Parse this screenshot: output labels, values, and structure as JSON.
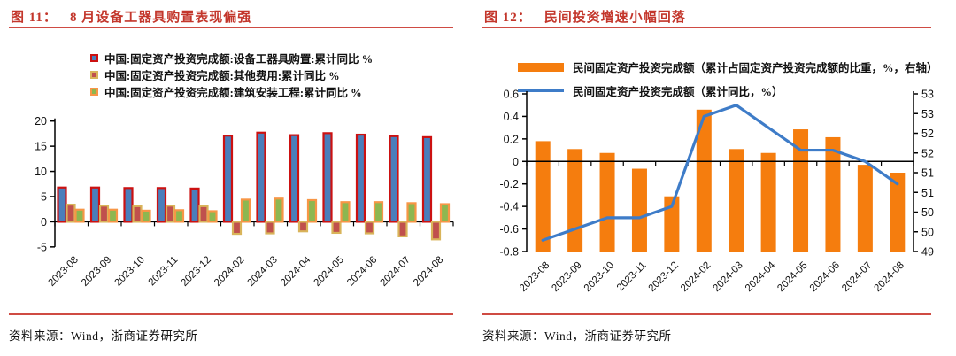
{
  "left_panel": {
    "fig_label": "图 11：",
    "title": "8 月设备工器具购置表现偏强",
    "source": "资料来源：Wind，浙商证券研究所"
  },
  "right_panel": {
    "fig_label": "图 12：",
    "title": "民间投资增速小幅回落",
    "source": "资料来源：Wind，浙商证券研究所"
  },
  "colors": {
    "title_red": "#c3362b",
    "rule_red": "#cf4b43",
    "axis_black": "#000000",
    "equip_fill": "#4a7ebb",
    "equip_border": "#cc1111",
    "other_fill": "#c0504d",
    "other_border": "#d9b45a",
    "constr_fill": "#8db750",
    "constr_border": "#f79646",
    "private_bar_orange": "#f57d0e",
    "private_line_blue": "#3e7cc8"
  },
  "chart_data": [
    {
      "type": "bar",
      "title": "图 11： 8 月设备工器具购置表现偏强",
      "categories": [
        "2023-08",
        "2023-09",
        "2023-10",
        "2023-11",
        "2023-12",
        "2024-02",
        "2024-03",
        "2024-04",
        "2024-05",
        "2024-06",
        "2024-07",
        "2024-08"
      ],
      "series": [
        {
          "name": "中国:固定资产投资完成额:设备工器具购置:累计同比 %",
          "fill": "#4a7ebb",
          "border": "#cc1111",
          "values": [
            6.8,
            6.8,
            6.7,
            6.7,
            6.6,
            17.1,
            17.7,
            17.2,
            17.6,
            17.3,
            17.0,
            16.8
          ]
        },
        {
          "name": "中国:固定资产投资完成额:其他费用:累计同比 %",
          "fill": "#c0504d",
          "border": "#d9b45a",
          "values": [
            3.4,
            3.2,
            3.1,
            3.2,
            3.1,
            -2.4,
            -2.3,
            -1.9,
            -2.2,
            -2.3,
            -2.9,
            -3.5
          ]
        },
        {
          "name": "中国:固定资产投资完成额:建筑安装工程:累计同比 %",
          "fill": "#8db750",
          "border": "#f79646",
          "values": [
            2.4,
            2.4,
            2.2,
            2.3,
            2.1,
            4.4,
            4.6,
            4.3,
            3.9,
            3.9,
            3.7,
            3.5
          ]
        }
      ],
      "ylim": [
        -5,
        20
      ],
      "ytick_step": 5,
      "grid": false,
      "legend_position": "top",
      "xlabel": "",
      "ylabel": ""
    },
    {
      "type": "bar+line",
      "title": "图 12： 民间投资增速小幅回落",
      "categories": [
        "2023-08",
        "2023-09",
        "2023-10",
        "2023-11",
        "2023-12",
        "2024-02",
        "2024-03",
        "2024-04",
        "2024-05",
        "2024-06",
        "2024-07",
        "2024-08"
      ],
      "series": [
        {
          "name": "民间固定资产投资完成额（累计占固定资产投资完成额的比重，%，右轴）",
          "type": "bar",
          "axis": "right",
          "color": "#f57d0e",
          "values": [
            51.8,
            51.6,
            51.5,
            51.1,
            50.4,
            52.6,
            51.6,
            51.5,
            52.1,
            51.9,
            51.2,
            51.0
          ]
        },
        {
          "name": "民间固定资产投资完成额（累计同比，%）",
          "type": "line",
          "axis": "left",
          "color": "#3e7cc8",
          "values": [
            -0.7,
            -0.6,
            -0.5,
            -0.5,
            -0.4,
            0.4,
            0.5,
            0.3,
            0.1,
            0.1,
            0.0,
            -0.2
          ]
        }
      ],
      "left_ylim": [
        -0.8,
        0.6
      ],
      "left_tick_step": 0.2,
      "right_ylim": [
        49,
        53
      ],
      "right_tick_step": 0.5,
      "grid": false,
      "legend_position": "top",
      "xlabel": "",
      "ylabel": ""
    }
  ]
}
